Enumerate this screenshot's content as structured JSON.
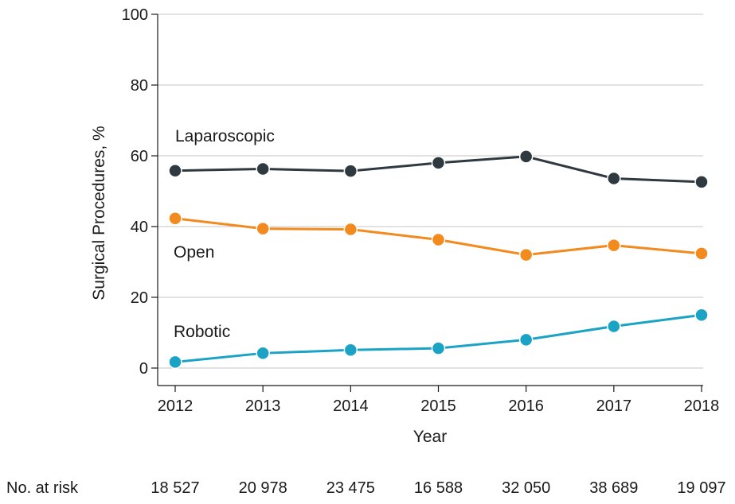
{
  "chart_data": {
    "type": "line",
    "title": "",
    "xlabel": "Year",
    "ylabel": "Surgical Procedures, %",
    "x": [
      "2012",
      "2013",
      "2014",
      "2015",
      "2016",
      "2017",
      "2018"
    ],
    "ylim": [
      0,
      100
    ],
    "yticks": [
      "0",
      "20",
      "40",
      "60",
      "80",
      "100"
    ],
    "grid": "horizontal",
    "series": [
      {
        "name": "Laparoscopic",
        "color": "#2f3a40",
        "values": [
          55.8,
          56.3,
          55.7,
          58.0,
          59.8,
          53.6,
          52.6
        ]
      },
      {
        "name": "Open",
        "color": "#f28a1e",
        "values": [
          42.3,
          39.4,
          39.2,
          36.3,
          32.0,
          34.7,
          32.4
        ]
      },
      {
        "name": "Robotic",
        "color": "#1ba3c6",
        "values": [
          1.7,
          4.2,
          5.1,
          5.6,
          8.0,
          11.8,
          15.0
        ]
      }
    ],
    "risk_table": {
      "label": "No. at risk",
      "values": [
        "18 527",
        "20 978",
        "23 475",
        "16 588",
        "32 050",
        "38 689",
        "19 097"
      ]
    }
  }
}
